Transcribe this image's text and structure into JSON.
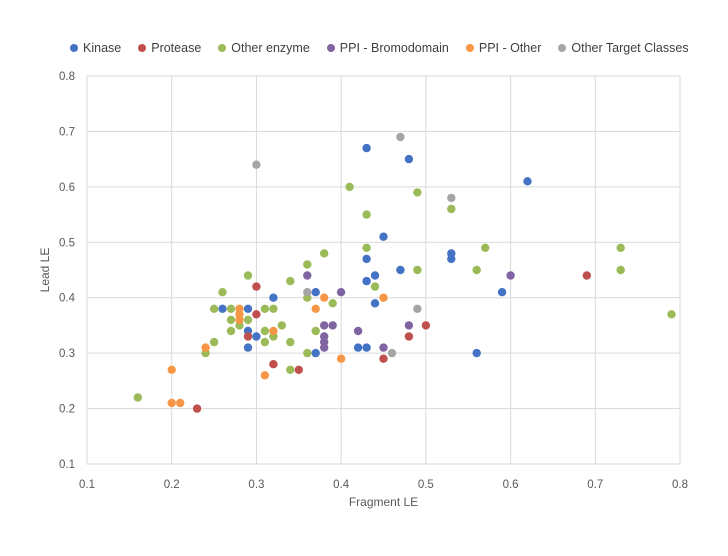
{
  "chart_data": {
    "type": "scatter",
    "title": "",
    "xlabel": "Fragment LE",
    "ylabel": "Lead LE",
    "xlim": [
      0.1,
      0.8
    ],
    "ylim": [
      0.1,
      0.8
    ],
    "x_ticks": [
      "0.1",
      "0.2",
      "0.3",
      "0.4",
      "0.5",
      "0.6",
      "0.7",
      "0.8"
    ],
    "y_ticks": [
      "0.1",
      "0.2",
      "0.3",
      "0.4",
      "0.5",
      "0.6",
      "0.7",
      "0.8"
    ],
    "grid": "vertical and horizontal major gridlines",
    "legend_position": "top",
    "series": [
      {
        "name": "Kinase",
        "color": "#4472C4",
        "points": [
          [
            0.43,
            0.67
          ],
          [
            0.48,
            0.65
          ],
          [
            0.62,
            0.61
          ],
          [
            0.45,
            0.51
          ],
          [
            0.53,
            0.48
          ],
          [
            0.53,
            0.47
          ],
          [
            0.43,
            0.47
          ],
          [
            0.47,
            0.45
          ],
          [
            0.43,
            0.43
          ],
          [
            0.44,
            0.44
          ],
          [
            0.59,
            0.41
          ],
          [
            0.44,
            0.39
          ],
          [
            0.37,
            0.41
          ],
          [
            0.32,
            0.4
          ],
          [
            0.26,
            0.38
          ],
          [
            0.29,
            0.38
          ],
          [
            0.29,
            0.34
          ],
          [
            0.3,
            0.33
          ],
          [
            0.29,
            0.31
          ],
          [
            0.37,
            0.3
          ],
          [
            0.42,
            0.31
          ],
          [
            0.43,
            0.31
          ],
          [
            0.56,
            0.3
          ]
        ]
      },
      {
        "name": "Protease",
        "color": "#C0504D",
        "points": [
          [
            0.3,
            0.42
          ],
          [
            0.3,
            0.37
          ],
          [
            0.29,
            0.33
          ],
          [
            0.32,
            0.28
          ],
          [
            0.35,
            0.27
          ],
          [
            0.23,
            0.2
          ],
          [
            0.45,
            0.29
          ],
          [
            0.48,
            0.33
          ],
          [
            0.5,
            0.35
          ],
          [
            0.69,
            0.44
          ]
        ]
      },
      {
        "name": "Other enzyme",
        "color": "#9BBB59",
        "points": [
          [
            0.41,
            0.6
          ],
          [
            0.49,
            0.59
          ],
          [
            0.53,
            0.56
          ],
          [
            0.43,
            0.55
          ],
          [
            0.43,
            0.49
          ],
          [
            0.57,
            0.49
          ],
          [
            0.73,
            0.49
          ],
          [
            0.38,
            0.48
          ],
          [
            0.36,
            0.46
          ],
          [
            0.49,
            0.45
          ],
          [
            0.56,
            0.45
          ],
          [
            0.73,
            0.45
          ],
          [
            0.29,
            0.44
          ],
          [
            0.34,
            0.43
          ],
          [
            0.44,
            0.42
          ],
          [
            0.26,
            0.41
          ],
          [
            0.36,
            0.4
          ],
          [
            0.39,
            0.39
          ],
          [
            0.25,
            0.38
          ],
          [
            0.27,
            0.38
          ],
          [
            0.29,
            0.36
          ],
          [
            0.31,
            0.38
          ],
          [
            0.32,
            0.38
          ],
          [
            0.27,
            0.36
          ],
          [
            0.28,
            0.35
          ],
          [
            0.31,
            0.34
          ],
          [
            0.33,
            0.35
          ],
          [
            0.31,
            0.32
          ],
          [
            0.32,
            0.33
          ],
          [
            0.27,
            0.34
          ],
          [
            0.25,
            0.32
          ],
          [
            0.24,
            0.3
          ],
          [
            0.34,
            0.32
          ],
          [
            0.34,
            0.27
          ],
          [
            0.36,
            0.3
          ],
          [
            0.37,
            0.34
          ],
          [
            0.16,
            0.22
          ],
          [
            0.79,
            0.37
          ]
        ]
      },
      {
        "name": "PPI - Bromodomain",
        "color": "#8064A2",
        "points": [
          [
            0.36,
            0.44
          ],
          [
            0.4,
            0.41
          ],
          [
            0.38,
            0.35
          ],
          [
            0.39,
            0.35
          ],
          [
            0.38,
            0.33
          ],
          [
            0.38,
            0.32
          ],
          [
            0.38,
            0.31
          ],
          [
            0.42,
            0.34
          ],
          [
            0.45,
            0.31
          ],
          [
            0.48,
            0.35
          ],
          [
            0.6,
            0.44
          ]
        ]
      },
      {
        "name": "PPI - Other",
        "color": "#F79646",
        "points": [
          [
            0.2,
            0.27
          ],
          [
            0.2,
            0.21
          ],
          [
            0.21,
            0.21
          ],
          [
            0.24,
            0.31
          ],
          [
            0.28,
            0.38
          ],
          [
            0.28,
            0.37
          ],
          [
            0.28,
            0.36
          ],
          [
            0.32,
            0.34
          ],
          [
            0.31,
            0.26
          ],
          [
            0.37,
            0.38
          ],
          [
            0.38,
            0.4
          ],
          [
            0.4,
            0.29
          ],
          [
            0.45,
            0.4
          ]
        ]
      },
      {
        "name": "Other Target Classes",
        "color": "#A5A5A5",
        "points": [
          [
            0.3,
            0.64
          ],
          [
            0.47,
            0.69
          ],
          [
            0.53,
            0.58
          ],
          [
            0.36,
            0.41
          ],
          [
            0.49,
            0.38
          ],
          [
            0.46,
            0.3
          ]
        ]
      }
    ]
  }
}
